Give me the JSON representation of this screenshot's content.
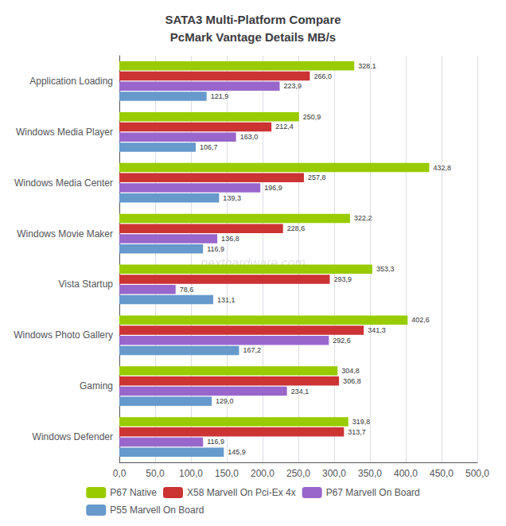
{
  "chart_data": {
    "type": "bar",
    "orientation": "horizontal",
    "title": "SATA3 Multi-Platform Compare\nPcMark Vantage Details MB/s",
    "categories": [
      "Application Loading",
      "Windows Media Player",
      "Windows Media Center",
      "Windows Movie Maker",
      "Vista Startup",
      "Windows Photo Gallery",
      "Gaming",
      "Windows Defender"
    ],
    "series": [
      {
        "name": "P67 Native",
        "color": "#99cc00",
        "values": [
          328.1,
          250.9,
          432.8,
          322.2,
          353.3,
          402.6,
          304.8,
          319.8
        ],
        "value_labels": [
          "328,1",
          "250,9",
          "432,8",
          "322,2",
          "353,3",
          "402,6",
          "304,8",
          "319,8"
        ]
      },
      {
        "name": "X58 Marvell On Pci-Ex 4x",
        "color": "#cc3333",
        "values": [
          266.0,
          212.4,
          257.8,
          228.6,
          293.9,
          341.3,
          306.8,
          313.7
        ],
        "value_labels": [
          "266,0",
          "212,4",
          "257,8",
          "228,6",
          "293,9",
          "341,3",
          "306,8",
          "313,7"
        ]
      },
      {
        "name": "P67 Marvell On Board",
        "color": "#9966cc",
        "values": [
          223.9,
          163.0,
          196.9,
          136.8,
          78.6,
          292.6,
          234.1,
          116.9
        ],
        "value_labels": [
          "223,9",
          "163,0",
          "196,9",
          "136,8",
          "78,6",
          "292,6",
          "234,1",
          "116,9"
        ]
      },
      {
        "name": "P55 Marvell On Board",
        "color": "#6699cc",
        "values": [
          121.9,
          106.7,
          139.3,
          116.9,
          131.1,
          167.2,
          129.0,
          145.9
        ],
        "value_labels": [
          "121,9",
          "106,7",
          "139,3",
          "116,9",
          "131,1",
          "167,2",
          "129,0",
          "145,9"
        ]
      }
    ],
    "xlim": [
      0,
      500
    ],
    "xticks": [
      {
        "value": 0,
        "label": "0,0"
      },
      {
        "value": 50,
        "label": "50,0"
      },
      {
        "value": 100,
        "label": "100,0"
      },
      {
        "value": 150,
        "label": "150,0"
      },
      {
        "value": 200,
        "label": "200,0"
      },
      {
        "value": 250,
        "label": "250,0"
      },
      {
        "value": 300,
        "label": "300,0"
      },
      {
        "value": 350,
        "label": "350,0"
      },
      {
        "value": 400,
        "label": "400,0"
      },
      {
        "value": 450,
        "label": "450,0"
      },
      {
        "value": 500,
        "label": "500,0"
      }
    ],
    "grid": true,
    "legend": "bottom",
    "data_labels": true,
    "annotations": [
      "nexthardware.com"
    ]
  }
}
